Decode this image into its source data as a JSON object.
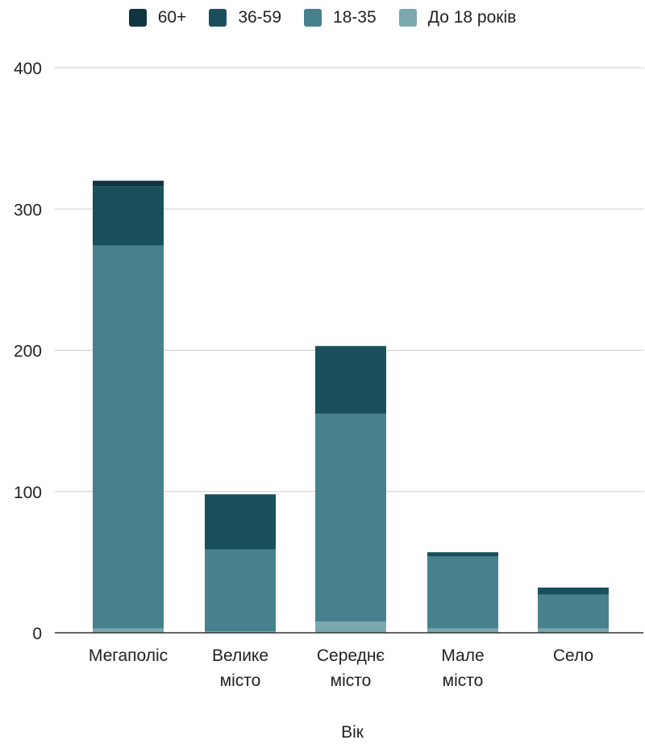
{
  "chart_data": {
    "type": "bar",
    "stacked": true,
    "categories": [
      [
        "Мегаполіс"
      ],
      [
        "Велике",
        "місто"
      ],
      [
        "Середнє",
        "місто"
      ],
      [
        "Мале",
        "місто"
      ],
      [
        "Село"
      ]
    ],
    "series": [
      {
        "name": "До 18 років",
        "color": "#7ba7ae",
        "values": [
          3,
          1,
          8,
          3,
          3
        ]
      },
      {
        "name": "18-35",
        "color": "#47818d",
        "values": [
          271,
          58,
          147,
          51,
          24
        ]
      },
      {
        "name": "36-59",
        "color": "#19505c",
        "values": [
          42,
          39,
          48,
          3,
          5
        ]
      },
      {
        "name": "60+",
        "color": "#0f3540",
        "values": [
          4,
          0,
          0,
          0,
          0
        ]
      }
    ],
    "legend_order": [
      "60+",
      "36-59",
      "18-35",
      "До 18 років"
    ],
    "legend_position": "top",
    "xlabel": "Вік",
    "ylabel": "",
    "ylim": [
      0,
      400
    ],
    "yticks": [
      0,
      100,
      200,
      300,
      400
    ],
    "grid": true
  }
}
